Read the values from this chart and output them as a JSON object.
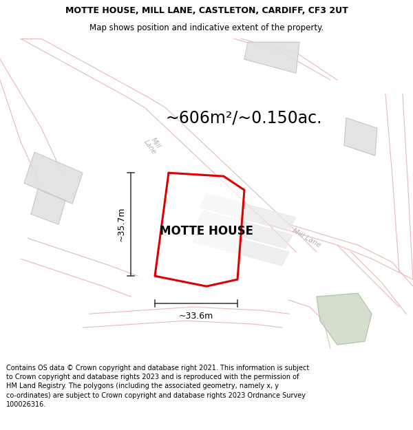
{
  "title_line1": "MOTTE HOUSE, MILL LANE, CASTLETON, CARDIFF, CF3 2UT",
  "title_line2": "Map shows position and indicative extent of the property.",
  "area_text": "~606m²/~0.150ac.",
  "property_label": "MOTTE HOUSE",
  "dim_vertical": "~35.7m",
  "dim_horizontal": "~33.6m",
  "footer_text": "Contains OS data © Crown copyright and database right 2021. This information is subject to Crown copyright and database rights 2023 and is reproduced with the permission of HM Land Registry. The polygons (including the associated geometry, namely x, y co-ordinates) are subject to Crown copyright and database rights 2023 Ordnance Survey 100026316.",
  "map_bg": "#f8f6f6",
  "road_outline_color": "#e8b8b8",
  "road_label_color": "#b0b0b0",
  "building_color": "#e0e0e0",
  "property_outline_color": "#dd0000",
  "property_fill": "#ffffff",
  "dim_line_color": "#333333",
  "title_fontsize": 9.0,
  "subtitle_fontsize": 8.5,
  "area_fontsize": 17,
  "label_fontsize": 12,
  "dim_fontsize": 9,
  "footer_fontsize": 7.0,
  "green_patch_color": "#c8d8c0"
}
